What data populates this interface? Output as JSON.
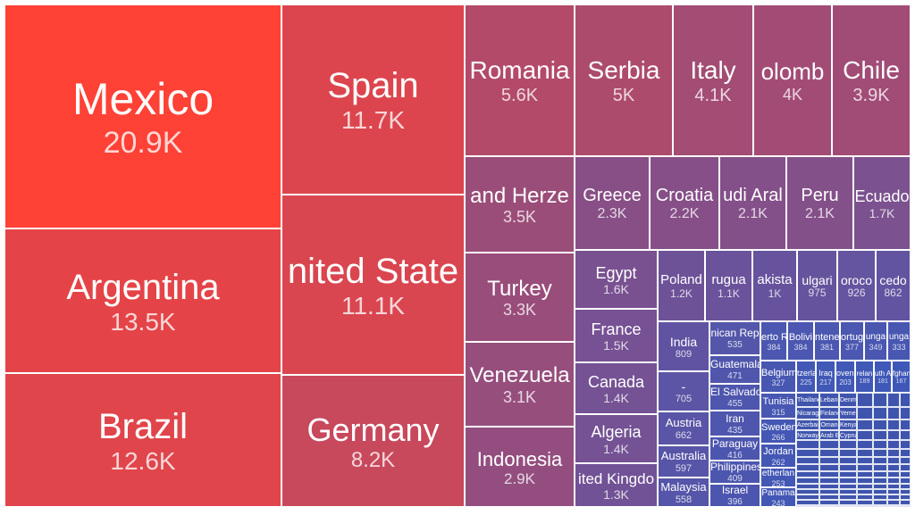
{
  "chart_data": {
    "type": "treemap",
    "title": "",
    "unit_format": "K",
    "color_scale": {
      "low": "#3f58b8",
      "high": "#ff4136"
    },
    "items": [
      {
        "name": "Mexico",
        "value": 20900,
        "label": "20.9K"
      },
      {
        "name": "Spain",
        "value": 11700,
        "label": "11.7K"
      },
      {
        "name": "Argentina",
        "value": 13500,
        "label": "13.5K"
      },
      {
        "name": "Brazil",
        "value": 12600,
        "label": "12.6K"
      },
      {
        "name": "United States",
        "value": 11100,
        "label": "11.1K"
      },
      {
        "name": "Germany",
        "value": 8200,
        "label": "8.2K"
      },
      {
        "name": "Romania",
        "value": 5600,
        "label": "5.6K"
      },
      {
        "name": "Serbia",
        "value": 5000,
        "label": "5K"
      },
      {
        "name": "Italy",
        "value": 4100,
        "label": "4.1K"
      },
      {
        "name": "Colombia",
        "value": 4000,
        "label": "4K"
      },
      {
        "name": "Chile",
        "value": 3900,
        "label": "3.9K"
      },
      {
        "name": "Bosnia and Herzegovina",
        "value": 3500,
        "label": "3.5K"
      },
      {
        "name": "Turkey",
        "value": 3300,
        "label": "3.3K"
      },
      {
        "name": "Venezuela",
        "value": 3100,
        "label": "3.1K"
      },
      {
        "name": "Indonesia",
        "value": 2900,
        "label": "2.9K"
      },
      {
        "name": "Greece",
        "value": 2300,
        "label": "2.3K"
      },
      {
        "name": "Croatia",
        "value": 2200,
        "label": "2.2K"
      },
      {
        "name": "Saudi Arabia",
        "value": 2100,
        "label": "2.1K"
      },
      {
        "name": "Peru",
        "value": 2100,
        "label": "2.1K"
      },
      {
        "name": "Ecuador",
        "value": 1700,
        "label": "1.7K"
      },
      {
        "name": "Egypt",
        "value": 1600,
        "label": "1.6K"
      },
      {
        "name": "France",
        "value": 1500,
        "label": "1.5K"
      },
      {
        "name": "Canada",
        "value": 1400,
        "label": "1.4K"
      },
      {
        "name": "Algeria",
        "value": 1400,
        "label": "1.4K"
      },
      {
        "name": "United Kingdom",
        "value": 1300,
        "label": "1.3K"
      },
      {
        "name": "Poland",
        "value": 1200,
        "label": "1.2K"
      },
      {
        "name": "Uruguay",
        "value": 1100,
        "label": "1.1K"
      },
      {
        "name": "Pakistan",
        "value": 1000,
        "label": "1K"
      },
      {
        "name": "Bulgaria",
        "value": 975,
        "label": "975"
      },
      {
        "name": "Morocco",
        "value": 926,
        "label": "926"
      },
      {
        "name": "Macedonia",
        "value": 862,
        "label": "862"
      },
      {
        "name": "India",
        "value": 809,
        "label": "809"
      },
      {
        "name": "-",
        "value": 705,
        "label": "705"
      },
      {
        "name": "Austria",
        "value": 662,
        "label": "662"
      },
      {
        "name": "Australia",
        "value": 597,
        "label": "597"
      },
      {
        "name": "Malaysia",
        "value": 558,
        "label": "558"
      },
      {
        "name": "Dominican Republic",
        "value": 535,
        "label": "535"
      },
      {
        "name": "Guatemala",
        "value": 471,
        "label": "471"
      },
      {
        "name": "El Salvador",
        "value": 455,
        "label": "455"
      },
      {
        "name": "Iran",
        "value": 435,
        "label": "435"
      },
      {
        "name": "Paraguay",
        "value": 416,
        "label": "416"
      },
      {
        "name": "Philippines",
        "value": 409,
        "label": "409"
      },
      {
        "name": "Israel",
        "value": 396,
        "label": "396"
      },
      {
        "name": "Puerto Rico",
        "value": 384,
        "label": "384"
      },
      {
        "name": "Bolivia",
        "value": 384,
        "label": "384"
      },
      {
        "name": "Montenegro",
        "value": 381,
        "label": "381"
      },
      {
        "name": "Portugal",
        "value": 377,
        "label": "377"
      },
      {
        "name": "Hungary",
        "value": 349,
        "label": "349"
      },
      {
        "name": "Hungary-2",
        "value": 333,
        "label": "333"
      },
      {
        "name": "Belgium",
        "value": 327,
        "label": "327"
      },
      {
        "name": "Tunisia",
        "value": 315,
        "label": "315"
      },
      {
        "name": "Sweden",
        "value": 266,
        "label": "266"
      },
      {
        "name": "Jordan",
        "value": 262,
        "label": "262"
      },
      {
        "name": "Netherlands",
        "value": 253,
        "label": "253"
      },
      {
        "name": "Panama",
        "value": 243,
        "label": "243"
      },
      {
        "name": "Switzerland",
        "value": 225,
        "label": "225"
      },
      {
        "name": "Iraq",
        "value": 217,
        "label": "217"
      },
      {
        "name": "Slovenia",
        "value": 203,
        "label": "203"
      },
      {
        "name": "Ireland",
        "value": 189,
        "label": "189"
      },
      {
        "name": "South Africa",
        "value": 181,
        "label": "181"
      },
      {
        "name": "Afghanistan",
        "value": 167,
        "label": "167"
      }
    ],
    "visible_labels": {
      "Colombia": "olomb",
      "Bosnia and Herzegovina": "and Herze",
      "Saudi Arabia": "udi Aral",
      "Ecuador": "Ecuado",
      "United States": "nited State",
      "United Kingdom": "ited Kingdo",
      "Uruguay": "rugua",
      "Pakistan": "akista",
      "Bulgaria": "ulgari",
      "Morocco": "oroco",
      "Macedonia": "cedo",
      "Dominican Republic": "nican Rep",
      "Puerto Rico": "erto R",
      "Bolivia": "Bolivi",
      "Montenegro": "ntenegr",
      "Portugal": "ortuga",
      "Hungary": "unga",
      "Switzerland": "tzerla",
      "Slovenia": "ovenl",
      "Ireland": "relan",
      "South Africa": "uth Af",
      "Afghanistan": "fghani",
      "Hungary-2": "unga",
      "Netherlands": "etherlan"
    },
    "small_labels": [
      "Thailand",
      "Nicaragua",
      "Azerbaijan",
      "Norway",
      "Lebanon",
      "Finland",
      "Oman",
      "Arab E",
      "Denmark",
      "Yemen",
      "Kenya",
      "Cyprus",
      "Lithuania",
      "Latvia",
      "Estonia",
      "Ukraine",
      "Albania",
      "Nepal",
      "Georgia",
      "Zealand"
    ]
  }
}
